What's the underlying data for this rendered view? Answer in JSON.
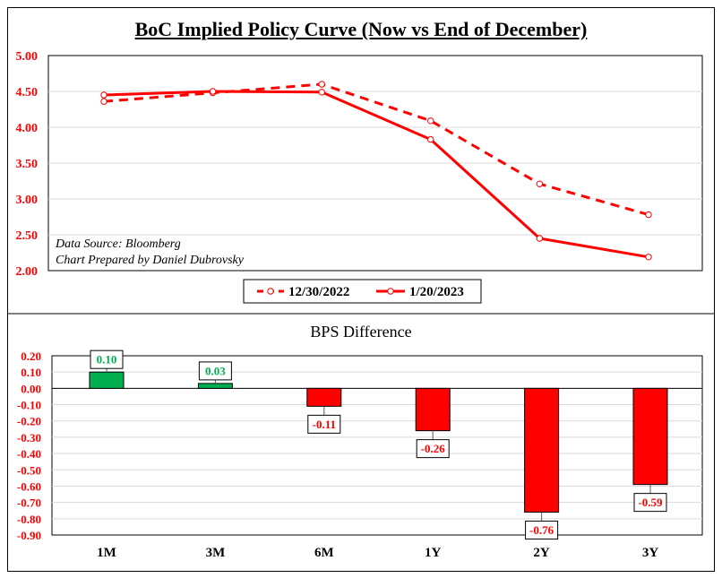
{
  "title": "BoC Implied Policy Curve (Now vs End of December)",
  "chart_data": [
    {
      "type": "line",
      "x": [
        "1M",
        "3M",
        "6M",
        "1Y",
        "2Y",
        "3Y"
      ],
      "ylim": [
        2.0,
        5.0
      ],
      "yticks": [
        "5.00",
        "4.50",
        "4.00",
        "3.50",
        "3.00",
        "2.50",
        "2.00"
      ],
      "grid": true,
      "legend_position": "bottom",
      "annotations": [
        "Data Source: Bloomberg",
        "Chart Prepared by Daniel Dubrovsky"
      ],
      "series": [
        {
          "name": "12/30/2022",
          "style": "dashed",
          "color": "#ff0000",
          "values": [
            4.36,
            4.48,
            4.6,
            4.09,
            3.21,
            2.78
          ]
        },
        {
          "name": "1/20/2023",
          "style": "solid",
          "color": "#ff0000",
          "values": [
            4.45,
            4.5,
            4.49,
            3.83,
            2.45,
            2.19
          ]
        }
      ]
    },
    {
      "type": "bar",
      "title": "BPS Difference",
      "categories": [
        "1M",
        "3M",
        "6M",
        "1Y",
        "2Y",
        "3Y"
      ],
      "values": [
        0.1,
        0.03,
        -0.11,
        -0.26,
        -0.76,
        -0.59
      ],
      "labels": [
        "0.10",
        "0.03",
        "-0.11",
        "-0.26",
        "-0.76",
        "-0.59"
      ],
      "ylim": [
        -0.9,
        0.2
      ],
      "yticks": [
        "0.20",
        "0.10",
        "0.00",
        "-0.10",
        "-0.20",
        "-0.30",
        "-0.40",
        "-0.50",
        "-0.60",
        "-0.70",
        "-0.80",
        "-0.90"
      ],
      "grid": true,
      "positive_color": "#00b050",
      "negative_color": "#ff0000"
    }
  ]
}
